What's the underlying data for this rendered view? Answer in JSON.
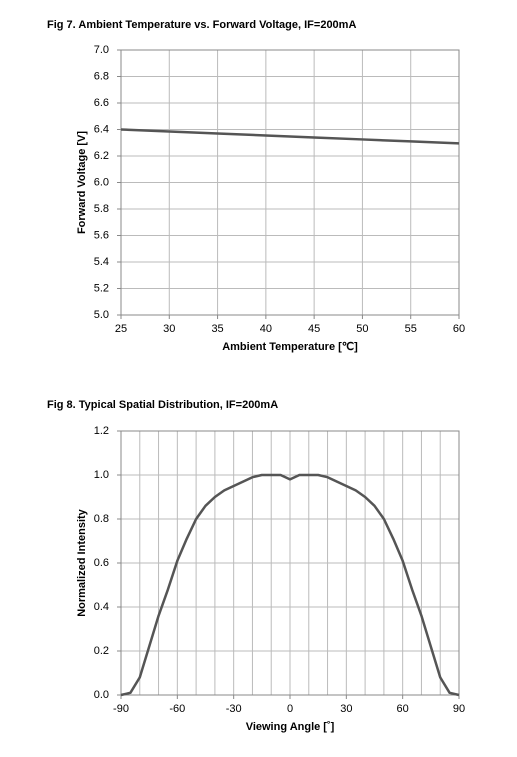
{
  "chart_data": [
    {
      "type": "line",
      "title": "Fig 7. Ambient Temperature vs. Forward Voltage, IF=200mA",
      "x_label": "Ambient Temperature [℃]",
      "y_label": "Forward Voltage [V]",
      "xlim": [
        25,
        60
      ],
      "xticks": [
        25,
        30,
        35,
        40,
        45,
        50,
        55,
        60
      ],
      "ylim": [
        5,
        7
      ],
      "yticks": [
        {
          "value": 5,
          "label": "5.0"
        },
        5.2,
        5.4,
        5.6,
        5.8,
        {
          "value": 6,
          "label": "6.0"
        },
        6.2,
        6.4,
        6.6,
        6.8,
        {
          "value": 7,
          "label": "7.0"
        }
      ],
      "grid": true,
      "x": [
        25,
        30,
        35,
        40,
        45,
        50,
        55,
        60
      ],
      "series": [
        {
          "color": "#555555",
          "values": [
            6.4,
            6.385,
            6.37,
            6.355,
            6.34,
            6.325,
            6.31,
            6.295
          ]
        }
      ]
    },
    {
      "type": "line",
      "title": "Fig 8. Typical Spatial Distribution, IF=200mA",
      "x_label": "Viewing Angle [˚]",
      "y_label": "Normalized Intensity",
      "xlim": [
        -90,
        90
      ],
      "xticks": [
        -90,
        -60,
        -30,
        0,
        30,
        60,
        90
      ],
      "xminorticks": [
        -80,
        -70,
        -50,
        -40,
        -20,
        -10,
        10,
        20,
        40,
        50,
        70,
        80
      ],
      "ylim": [
        0,
        1.2
      ],
      "yticks": [
        {
          "value": 0,
          "label": "0.0"
        },
        0.2,
        0.4,
        0.6,
        0.8,
        {
          "value": 1,
          "label": "1.0"
        },
        1.2
      ],
      "grid": true,
      "x": [
        -90,
        -85,
        -80,
        -75,
        -70,
        -65,
        -60,
        -55,
        -50,
        -45,
        -40,
        -35,
        -30,
        -25,
        -20,
        -15,
        -10,
        -5,
        0,
        5,
        10,
        15,
        20,
        25,
        30,
        35,
        40,
        45,
        50,
        55,
        60,
        65,
        70,
        75,
        80,
        85,
        90
      ],
      "series": [
        {
          "color": "#555555",
          "values": [
            0,
            0.01,
            0.08,
            0.22,
            0.36,
            0.48,
            0.61,
            0.71,
            0.8,
            0.86,
            0.9,
            0.93,
            0.95,
            0.97,
            0.99,
            1.0,
            1.0,
            1.0,
            0.98,
            1.0,
            1.0,
            1.0,
            0.99,
            0.97,
            0.95,
            0.93,
            0.9,
            0.86,
            0.8,
            0.71,
            0.61,
            0.48,
            0.36,
            0.22,
            0.08,
            0.01,
            0
          ]
        }
      ]
    }
  ]
}
